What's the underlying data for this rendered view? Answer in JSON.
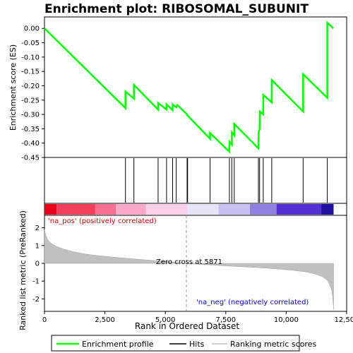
{
  "chart_data": {
    "type": "line",
    "title": "Enrichment plot: RIBOSOMAL_SUBUNIT",
    "es_panel": {
      "ylabel": "Enrichment score (ES)",
      "ylim": [
        -0.45,
        0.0
      ],
      "yticks": [
        "0.00",
        "-0.05",
        "-0.10",
        "-0.15",
        "-0.20",
        "-0.25",
        "-0.30",
        "-0.35",
        "-0.40",
        "-0.45"
      ],
      "ytick_values": [
        0.0,
        -0.05,
        -0.1,
        -0.15,
        -0.2,
        -0.25,
        -0.3,
        -0.35,
        -0.4,
        -0.45
      ],
      "series": [
        {
          "name": "Enrichment profile",
          "color": "#00ff00",
          "x": [
            0,
            3350,
            3351,
            3700,
            3701,
            4700,
            4701,
            5050,
            5051,
            5300,
            5301,
            5450,
            5500,
            5900,
            5901,
            6850,
            6851,
            7650,
            7651,
            7750,
            7751,
            7850,
            7851,
            8850,
            8860,
            8900,
            8910,
            9050,
            9051,
            9400,
            9401,
            10700,
            10701,
            11700,
            11701,
            11950
          ],
          "y": [
            0.0,
            -0.278,
            -0.22,
            -0.245,
            -0.197,
            -0.283,
            -0.26,
            -0.283,
            -0.265,
            -0.285,
            -0.265,
            -0.275,
            -0.267,
            -0.3,
            -0.302,
            -0.385,
            -0.365,
            -0.43,
            -0.395,
            -0.405,
            -0.363,
            -0.373,
            -0.333,
            -0.418,
            -0.36,
            -0.352,
            -0.29,
            -0.3,
            -0.232,
            -0.258,
            -0.18,
            -0.29,
            -0.16,
            -0.242,
            0.02,
            0.0
          ]
        }
      ]
    },
    "hits": [
      3350,
      3700,
      4700,
      5050,
      5300,
      5450,
      5900,
      5920,
      6850,
      7650,
      7750,
      7850,
      8850,
      8900,
      9050,
      9400,
      10700,
      11700
    ],
    "ranked_panel": {
      "ylabel": "Ranked list metric (PreRanked)",
      "ylim": [
        -2.7,
        2.7
      ],
      "yticks": [
        "2",
        "1",
        "0",
        "-1",
        "-2"
      ],
      "ytick_values": [
        2,
        1,
        0,
        -1,
        -2
      ],
      "series_name": "Ranking metric scores",
      "fill_color": "#c0c0c0",
      "profile_x": [
        0,
        50,
        150,
        300,
        500,
        800,
        1200,
        1700,
        2300,
        3000,
        3800,
        4600,
        5300,
        5871,
        6500,
        7200,
        8000,
        8800,
        9500,
        10200,
        10800,
        11200,
        11500,
        11700,
        11800,
        11880,
        11930,
        11960
      ],
      "profile_y": [
        1.9,
        1.6,
        1.3,
        1.1,
        0.95,
        0.8,
        0.65,
        0.52,
        0.42,
        0.33,
        0.24,
        0.15,
        0.07,
        0.0,
        -0.06,
        -0.12,
        -0.18,
        -0.24,
        -0.3,
        -0.38,
        -0.48,
        -0.6,
        -0.75,
        -0.95,
        -1.2,
        -1.5,
        -2.0,
        -2.6
      ],
      "zero_cross_label": "Zero cross at 5871",
      "zero_cross_x": 5871,
      "pos_label": "'na_pos' (positively correlated)",
      "neg_label": "'na_neg' (negatively correlated)"
    },
    "xaxis": {
      "xlabel": "Rank in Ordered Dataset",
      "xlim": [
        0,
        12500
      ],
      "xticks": [
        "0",
        "2,500",
        "5,000",
        "7,500",
        "10,000",
        "12,500"
      ],
      "xtick_values": [
        0,
        2500,
        5000,
        7500,
        10000,
        12500
      ],
      "n_genes": 11960
    },
    "heatmap_colors": [
      "#e8001e",
      "#f0405a",
      "#f57090",
      "#f9a8c8",
      "#fbd0e8",
      "#e8e4f8",
      "#c8c0f0",
      "#9080e0",
      "#5030d0",
      "#2010a0"
    ],
    "heatmap_bounds": [
      0,
      500,
      2100,
      2950,
      4200,
      5900,
      7200,
      8500,
      9600,
      11450,
      11960
    ],
    "legend": {
      "items": [
        {
          "name": "Enrichment profile",
          "color": "#00ff00"
        },
        {
          "name": "Hits",
          "color": "#000000"
        },
        {
          "name": "Ranking metric scores",
          "color": "#c0c0c0"
        }
      ]
    }
  }
}
